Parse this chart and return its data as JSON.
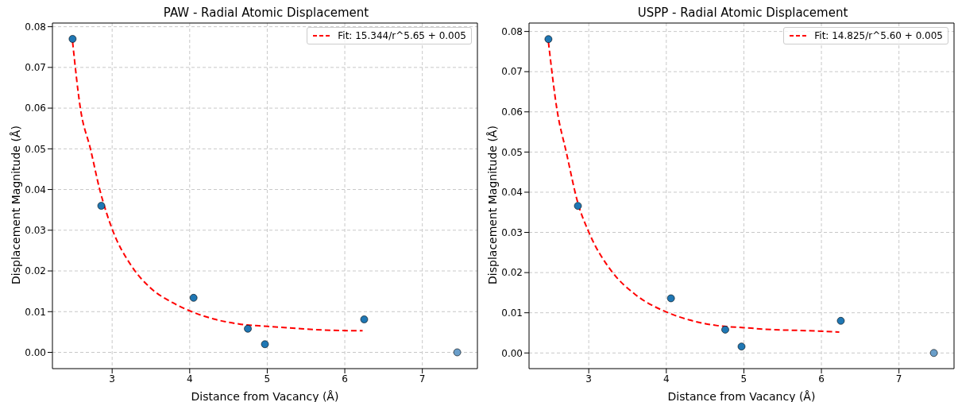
{
  "chart_data": [
    {
      "type": "scatter",
      "title": "PAW - Radial Atomic Displacement",
      "xlabel": "Distance from Vacancy (Å)",
      "ylabel": "Displacement Magnitude (Å)",
      "xlim": [
        2.23,
        7.71
      ],
      "ylim": [
        -0.004,
        0.0809
      ],
      "xticks": [
        3,
        4,
        5,
        6,
        7
      ],
      "yticks": [
        {
          "value": 0,
          "label": "0.00"
        },
        {
          "value": 0.01,
          "label": "0.01"
        },
        {
          "value": 0.02,
          "label": "0.02"
        },
        {
          "value": 0.03,
          "label": "0.03"
        },
        {
          "value": 0.04,
          "label": "0.04"
        },
        {
          "value": 0.05,
          "label": "0.05"
        },
        {
          "value": 0.06,
          "label": "0.06"
        },
        {
          "value": 0.07,
          "label": "0.07"
        },
        {
          "value": 0.08,
          "label": "0.08"
        }
      ],
      "grid": true,
      "legend": "top right",
      "series": [
        {
          "type": "scatter",
          "marker": "circle",
          "x": [
            2.49,
            2.86,
            4.05,
            4.75,
            4.97,
            6.25,
            7.45
          ],
          "values": [
            0.077,
            0.036,
            0.0134,
            0.0058,
            0.002,
            0.0081,
            0.0
          ],
          "colors": [
            "#1f77b4",
            "#1f77b4",
            "#1f77b4",
            "#1f77b4",
            "#1f77b4",
            "#1f77b4",
            "#6a9ec9"
          ]
        },
        {
          "type": "line",
          "name": "Fit: 15.344/r^5.65 + 0.005",
          "color": "#ff0000",
          "line_style": "dashed",
          "marker": "none",
          "x": [
            2.49,
            2.59,
            2.72,
            2.84,
            3.0,
            3.25,
            3.49,
            3.78,
            4.0,
            4.31,
            4.66,
            5.0,
            5.37,
            5.72,
            6.23
          ],
          "values": [
            0.0763,
            0.06,
            0.05,
            0.04,
            0.0303,
            0.0212,
            0.0159,
            0.0122,
            0.0102,
            0.0082,
            0.0069,
            0.0064,
            0.0059,
            0.0055,
            0.0053
          ]
        }
      ]
    },
    {
      "type": "scatter",
      "title": "USPP - Radial Atomic Displacement",
      "xlabel": "Distance from Vacancy (Å)",
      "ylabel": "Displacement Magnitude (Å)",
      "xlim": [
        2.23,
        7.71
      ],
      "ylim": [
        -0.0039,
        0.0821
      ],
      "xticks": [
        3,
        4,
        5,
        6,
        7
      ],
      "yticks": [
        {
          "value": 0,
          "label": "0.00"
        },
        {
          "value": 0.01,
          "label": "0.01"
        },
        {
          "value": 0.02,
          "label": "0.02"
        },
        {
          "value": 0.03,
          "label": "0.03"
        },
        {
          "value": 0.04,
          "label": "0.04"
        },
        {
          "value": 0.05,
          "label": "0.05"
        },
        {
          "value": 0.06,
          "label": "0.06"
        },
        {
          "value": 0.07,
          "label": "0.07"
        },
        {
          "value": 0.08,
          "label": "0.08"
        }
      ],
      "grid": true,
      "legend": "top right",
      "series": [
        {
          "type": "scatter",
          "marker": "circle",
          "x": [
            2.48,
            2.86,
            4.06,
            4.76,
            4.97,
            6.25,
            7.45
          ],
          "values": [
            0.0781,
            0.0366,
            0.0136,
            0.0058,
            0.0016,
            0.008,
            0.0
          ],
          "colors": [
            "#1f77b4",
            "#1f77b4",
            "#1f77b4",
            "#1f77b4",
            "#1f77b4",
            "#1f77b4",
            "#6a9ec9"
          ]
        },
        {
          "type": "line",
          "name": "Fit: 14.825/r^5.60 + 0.005",
          "color": "#ff0000",
          "line_style": "dashed",
          "marker": "none",
          "x": [
            2.48,
            2.59,
            2.71,
            2.86,
            3.0,
            3.3,
            3.59,
            4.0,
            4.3,
            4.66,
            5.0,
            5.37,
            5.73,
            6.23
          ],
          "values": [
            0.0774,
            0.0606,
            0.05,
            0.0373,
            0.0301,
            0.0202,
            0.0147,
            0.0102,
            0.0082,
            0.0068,
            0.0063,
            0.0058,
            0.0056,
            0.0052
          ]
        }
      ]
    }
  ]
}
